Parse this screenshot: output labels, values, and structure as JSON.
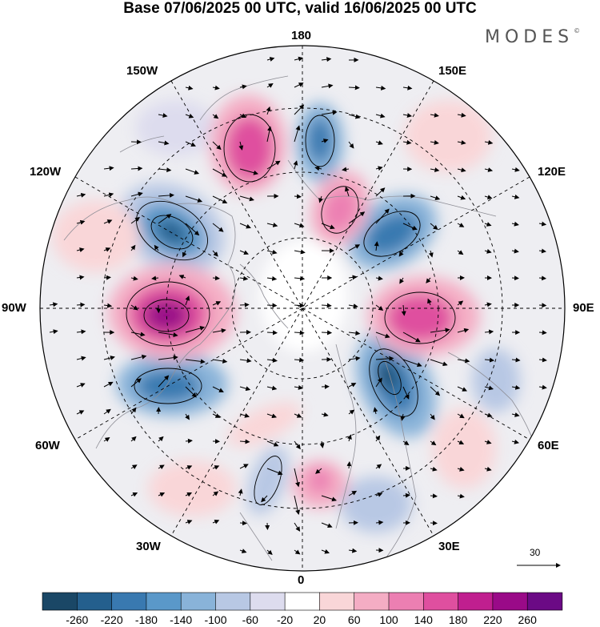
{
  "title": "Base 07/06/2025 00 UTC, valid 16/06/2025 00 UTC",
  "brand": "MODES",
  "brand_mark": "©",
  "longitude_labels": {
    "n180": "180",
    "w150": "150W",
    "e150": "150E",
    "w120": "120W",
    "e120": "120E",
    "w90": "90W",
    "e90": "90E",
    "w60": "60W",
    "e60": "60E",
    "w30": "30W",
    "e30": "30E",
    "s0": "0"
  },
  "reference_vector": {
    "label": "30"
  },
  "colorbar": {
    "colors": [
      "#1a4766",
      "#245f8d",
      "#3979b0",
      "#5a98c9",
      "#89b3d9",
      "#b8c8e4",
      "#dddcee",
      "#ffffff",
      "#f9d6d8",
      "#f4adc4",
      "#ec7fb2",
      "#df4f9f",
      "#c01f8f",
      "#9a0a88",
      "#6b0a85"
    ],
    "tick_labels": [
      "-260",
      "-220",
      "-180",
      "-140",
      "-100",
      "-60",
      "-20",
      "20",
      "60",
      "100",
      "140",
      "180",
      "220",
      "260"
    ]
  },
  "map_colors": {
    "background": "#e8e8ec",
    "ocean": "#f4f4f6",
    "land_stroke": "#9a9aa0"
  }
}
